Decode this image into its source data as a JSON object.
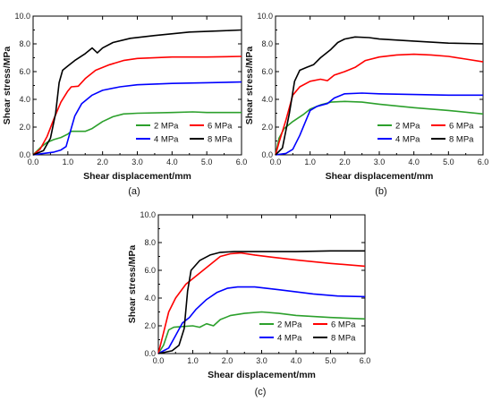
{
  "chart_data": [
    {
      "type": "line",
      "caption": "(a)",
      "xlabel": "Shear displacement/mm",
      "ylabel": "Shear stress/MPa",
      "xlim": [
        0,
        6
      ],
      "ylim": [
        0,
        10
      ],
      "xticks": [
        "0.0",
        "1.0",
        "2.0",
        "3.0",
        "4.0",
        "5.0",
        "6.0"
      ],
      "yticks": [
        "0.0",
        "2.0",
        "4.0",
        "6.0",
        "8.0",
        "10.0"
      ],
      "grid": false,
      "legend_position": "bottom-right",
      "series": [
        {
          "name": "2 MPa",
          "color": "#2ca02c",
          "points": [
            [
              0,
              0
            ],
            [
              0.2,
              0.5
            ],
            [
              0.4,
              0.9
            ],
            [
              0.6,
              1.1
            ],
            [
              0.8,
              1.25
            ],
            [
              1.0,
              1.5
            ],
            [
              1.1,
              1.7
            ],
            [
              1.3,
              1.7
            ],
            [
              1.5,
              1.7
            ],
            [
              1.7,
              1.9
            ],
            [
              2.0,
              2.4
            ],
            [
              2.3,
              2.75
            ],
            [
              2.6,
              2.95
            ],
            [
              3.0,
              3.0
            ],
            [
              4.0,
              3.05
            ],
            [
              4.6,
              3.1
            ],
            [
              5.0,
              3.05
            ],
            [
              6.0,
              3.05
            ]
          ]
        },
        {
          "name": "6 MPa",
          "color": "#ff0000",
          "points": [
            [
              0,
              0
            ],
            [
              0.2,
              0.4
            ],
            [
              0.4,
              1.3
            ],
            [
              0.6,
              2.6
            ],
            [
              0.8,
              3.8
            ],
            [
              1.0,
              4.6
            ],
            [
              1.1,
              4.9
            ],
            [
              1.3,
              4.95
            ],
            [
              1.5,
              5.5
            ],
            [
              1.8,
              6.1
            ],
            [
              2.2,
              6.5
            ],
            [
              2.6,
              6.8
            ],
            [
              3.0,
              6.95
            ],
            [
              4.0,
              7.05
            ],
            [
              5.0,
              7.05
            ],
            [
              6.0,
              7.1
            ]
          ]
        },
        {
          "name": "4 MPa",
          "color": "#0000ff",
          "points": [
            [
              0,
              0
            ],
            [
              0.3,
              0.1
            ],
            [
              0.6,
              0.2
            ],
            [
              0.8,
              0.35
            ],
            [
              0.95,
              0.6
            ],
            [
              1.05,
              1.5
            ],
            [
              1.2,
              2.8
            ],
            [
              1.4,
              3.7
            ],
            [
              1.7,
              4.3
            ],
            [
              2.0,
              4.65
            ],
            [
              2.5,
              4.9
            ],
            [
              3.0,
              5.05
            ],
            [
              4.0,
              5.15
            ],
            [
              5.0,
              5.2
            ],
            [
              6.0,
              5.25
            ]
          ]
        },
        {
          "name": "8 MPa",
          "color": "#000000",
          "points": [
            [
              0,
              0
            ],
            [
              0.3,
              0.3
            ],
            [
              0.5,
              1.2
            ],
            [
              0.65,
              3.0
            ],
            [
              0.75,
              5.2
            ],
            [
              0.85,
              6.1
            ],
            [
              1.0,
              6.4
            ],
            [
              1.2,
              6.8
            ],
            [
              1.5,
              7.3
            ],
            [
              1.7,
              7.7
            ],
            [
              1.85,
              7.35
            ],
            [
              2.0,
              7.7
            ],
            [
              2.3,
              8.1
            ],
            [
              2.8,
              8.4
            ],
            [
              3.5,
              8.6
            ],
            [
              4.5,
              8.85
            ],
            [
              5.5,
              8.95
            ],
            [
              6.0,
              9.0
            ]
          ]
        }
      ]
    },
    {
      "type": "line",
      "caption": "(b)",
      "xlabel": "Shear displacement/mm",
      "ylabel": "Shear stress/MPa",
      "xlim": [
        0,
        6
      ],
      "ylim": [
        0,
        10
      ],
      "xticks": [
        "0.0",
        "1.0",
        "2.0",
        "3.0",
        "4.0",
        "5.0",
        "6.0"
      ],
      "yticks": [
        "0.0",
        "2.0",
        "4.0",
        "6.0",
        "8.0",
        "10.0"
      ],
      "grid": false,
      "legend_position": "bottom-right",
      "series": [
        {
          "name": "2 MPa",
          "color": "#2ca02c",
          "points": [
            [
              0,
              0
            ],
            [
              0.1,
              1.2
            ],
            [
              0.25,
              1.9
            ],
            [
              0.5,
              2.4
            ],
            [
              0.8,
              2.9
            ],
            [
              1.0,
              3.3
            ],
            [
              1.3,
              3.6
            ],
            [
              1.6,
              3.8
            ],
            [
              2.0,
              3.85
            ],
            [
              2.5,
              3.8
            ],
            [
              3.0,
              3.65
            ],
            [
              4.0,
              3.4
            ],
            [
              5.0,
              3.2
            ],
            [
              6.0,
              2.95
            ]
          ]
        },
        {
          "name": "6 MPa",
          "color": "#ff0000",
          "points": [
            [
              0,
              0
            ],
            [
              0.1,
              0.9
            ],
            [
              0.3,
              2.5
            ],
            [
              0.5,
              4.3
            ],
            [
              0.7,
              4.9
            ],
            [
              1.0,
              5.3
            ],
            [
              1.3,
              5.45
            ],
            [
              1.5,
              5.35
            ],
            [
              1.7,
              5.75
            ],
            [
              2.0,
              6.0
            ],
            [
              2.3,
              6.3
            ],
            [
              2.6,
              6.8
            ],
            [
              3.0,
              7.05
            ],
            [
              3.5,
              7.2
            ],
            [
              4.0,
              7.25
            ],
            [
              4.5,
              7.2
            ],
            [
              5.0,
              7.1
            ],
            [
              5.5,
              6.9
            ],
            [
              6.0,
              6.7
            ]
          ]
        },
        {
          "name": "4 MPa",
          "color": "#0000ff",
          "points": [
            [
              0,
              0
            ],
            [
              0.3,
              0.1
            ],
            [
              0.5,
              0.4
            ],
            [
              0.7,
              1.4
            ],
            [
              0.9,
              2.6
            ],
            [
              1.0,
              3.2
            ],
            [
              1.2,
              3.5
            ],
            [
              1.5,
              3.7
            ],
            [
              1.7,
              4.1
            ],
            [
              2.0,
              4.4
            ],
            [
              2.5,
              4.45
            ],
            [
              3.0,
              4.4
            ],
            [
              4.0,
              4.35
            ],
            [
              5.0,
              4.3
            ],
            [
              6.0,
              4.3
            ]
          ]
        },
        {
          "name": "8 MPa",
          "color": "#000000",
          "points": [
            [
              0,
              0
            ],
            [
              0.2,
              0.5
            ],
            [
              0.4,
              3.0
            ],
            [
              0.55,
              5.3
            ],
            [
              0.7,
              6.1
            ],
            [
              0.9,
              6.3
            ],
            [
              1.1,
              6.5
            ],
            [
              1.3,
              7.0
            ],
            [
              1.6,
              7.6
            ],
            [
              1.8,
              8.1
            ],
            [
              2.0,
              8.35
            ],
            [
              2.3,
              8.5
            ],
            [
              2.7,
              8.45
            ],
            [
              3.0,
              8.35
            ],
            [
              4.0,
              8.2
            ],
            [
              5.0,
              8.05
            ],
            [
              6.0,
              8.0
            ]
          ]
        }
      ]
    },
    {
      "type": "line",
      "caption": "(c)",
      "xlabel": "Shear displacement/mm",
      "ylabel": "Shear stress/MPa",
      "xlim": [
        0,
        6
      ],
      "ylim": [
        0,
        10
      ],
      "xticks": [
        "0.0",
        "1.0",
        "2.0",
        "3.0",
        "4.0",
        "5.0",
        "6.0"
      ],
      "yticks": [
        "0.0",
        "2.0",
        "4.0",
        "6.0",
        "8.0",
        "10.0"
      ],
      "grid": false,
      "legend_position": "bottom-right",
      "series": [
        {
          "name": "2 MPa",
          "color": "#2ca02c",
          "points": [
            [
              0,
              0
            ],
            [
              0.15,
              0.6
            ],
            [
              0.3,
              1.7
            ],
            [
              0.45,
              1.9
            ],
            [
              0.7,
              1.95
            ],
            [
              1.0,
              2.0
            ],
            [
              1.2,
              1.9
            ],
            [
              1.4,
              2.15
            ],
            [
              1.6,
              2.0
            ],
            [
              1.8,
              2.45
            ],
            [
              2.1,
              2.75
            ],
            [
              2.5,
              2.9
            ],
            [
              3.0,
              3.0
            ],
            [
              3.5,
              2.9
            ],
            [
              4.0,
              2.75
            ],
            [
              5.0,
              2.6
            ],
            [
              6.0,
              2.5
            ]
          ]
        },
        {
          "name": "6 MPa",
          "color": "#ff0000",
          "points": [
            [
              0,
              0
            ],
            [
              0.15,
              1.5
            ],
            [
              0.3,
              3.0
            ],
            [
              0.5,
              4.0
            ],
            [
              0.8,
              5.0
            ],
            [
              1.1,
              5.6
            ],
            [
              1.5,
              6.4
            ],
            [
              1.8,
              7.0
            ],
            [
              2.1,
              7.2
            ],
            [
              2.4,
              7.25
            ],
            [
              2.8,
              7.1
            ],
            [
              3.3,
              6.95
            ],
            [
              4.0,
              6.75
            ],
            [
              5.0,
              6.5
            ],
            [
              6.0,
              6.3
            ]
          ]
        },
        {
          "name": "4 MPa",
          "color": "#0000ff",
          "points": [
            [
              0,
              0
            ],
            [
              0.3,
              0.4
            ],
            [
              0.5,
              1.3
            ],
            [
              0.7,
              2.2
            ],
            [
              0.9,
              2.6
            ],
            [
              1.1,
              3.2
            ],
            [
              1.4,
              3.9
            ],
            [
              1.7,
              4.4
            ],
            [
              2.0,
              4.7
            ],
            [
              2.3,
              4.8
            ],
            [
              2.8,
              4.8
            ],
            [
              3.5,
              4.6
            ],
            [
              4.5,
              4.3
            ],
            [
              5.2,
              4.15
            ],
            [
              6.0,
              4.1
            ]
          ]
        },
        {
          "name": "8 MPa",
          "color": "#000000",
          "points": [
            [
              0,
              0
            ],
            [
              0.4,
              0.2
            ],
            [
              0.6,
              0.6
            ],
            [
              0.75,
              1.8
            ],
            [
              0.85,
              4.5
            ],
            [
              0.95,
              6.0
            ],
            [
              1.2,
              6.7
            ],
            [
              1.5,
              7.1
            ],
            [
              1.8,
              7.3
            ],
            [
              2.2,
              7.35
            ],
            [
              3.0,
              7.35
            ],
            [
              4.0,
              7.35
            ],
            [
              5.0,
              7.4
            ],
            [
              6.0,
              7.4
            ]
          ]
        }
      ]
    }
  ]
}
